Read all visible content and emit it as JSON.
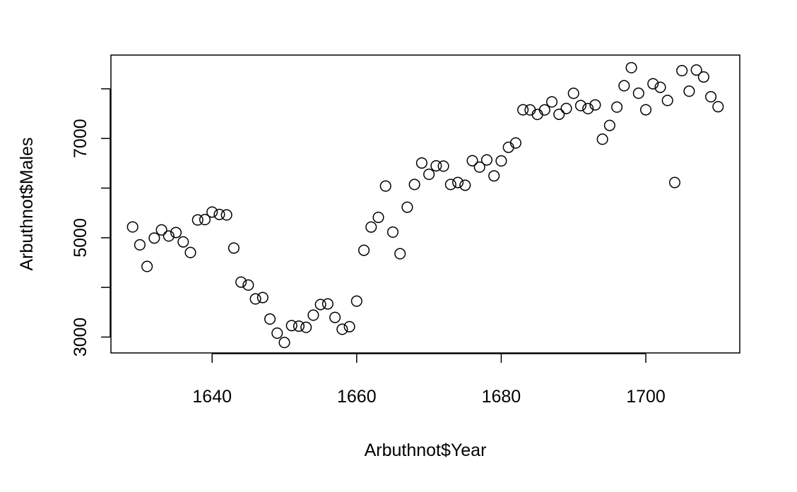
{
  "chart_data": {
    "type": "scatter",
    "title": "",
    "xlabel": "Arbuthnot$Year",
    "ylabel": "Arbuthnot$Males",
    "xlim": [
      1626,
      1713
    ],
    "ylim": [
      2680,
      8680
    ],
    "x_ticks": [
      1640,
      1660,
      1680,
      1700
    ],
    "y_ticks": [
      3000,
      4000,
      5000,
      6000,
      7000,
      8000
    ],
    "y_tick_labels": [
      "3000",
      "",
      "5000",
      "",
      "7000",
      ""
    ],
    "grid": false,
    "series": [
      {
        "x": [
          1629,
          1630,
          1631,
          1632,
          1633,
          1634,
          1635,
          1636,
          1637,
          1638,
          1639,
          1640,
          1641,
          1642,
          1643,
          1644,
          1645,
          1646,
          1647,
          1648,
          1649,
          1650,
          1651,
          1652,
          1653,
          1654,
          1655,
          1656,
          1657,
          1658,
          1659,
          1660,
          1661,
          1662,
          1663,
          1664,
          1665,
          1666,
          1667,
          1668,
          1669,
          1670,
          1671,
          1672,
          1673,
          1674,
          1675,
          1676,
          1677,
          1678,
          1679,
          1680,
          1681,
          1682,
          1683,
          1684,
          1685,
          1686,
          1687,
          1688,
          1689,
          1690,
          1691,
          1692,
          1693,
          1694,
          1695,
          1696,
          1697,
          1698,
          1699,
          1700,
          1701,
          1702,
          1703,
          1704,
          1705,
          1706,
          1707,
          1708,
          1709,
          1710
        ],
        "y": [
          5218,
          4858,
          4422,
          4994,
          5158,
          5035,
          5106,
          4917,
          4703,
          5359,
          5366,
          5518,
          5470,
          5460,
          4793,
          4107,
          4047,
          3768,
          3796,
          3363,
          3079,
          2890,
          3231,
          3220,
          3196,
          3441,
          3655,
          3668,
          3396,
          3157,
          3209,
          3724,
          4748,
          5216,
          5411,
          6041,
          5114,
          4678,
          5616,
          6073,
          6506,
          6278,
          6449,
          6443,
          6073,
          6113,
          6058,
          6552,
          6423,
          6568,
          6247,
          6548,
          6822,
          6909,
          7577,
          7575,
          7484,
          7575,
          7737,
          7487,
          7604,
          7909,
          7662,
          7602,
          7676,
          6985,
          7263,
          7632,
          8062,
          8426,
          7911,
          7578,
          8102,
          8031,
          7765,
          6113,
          8366,
          7952,
          8379,
          8239,
          7840,
          7640
        ]
      }
    ]
  }
}
